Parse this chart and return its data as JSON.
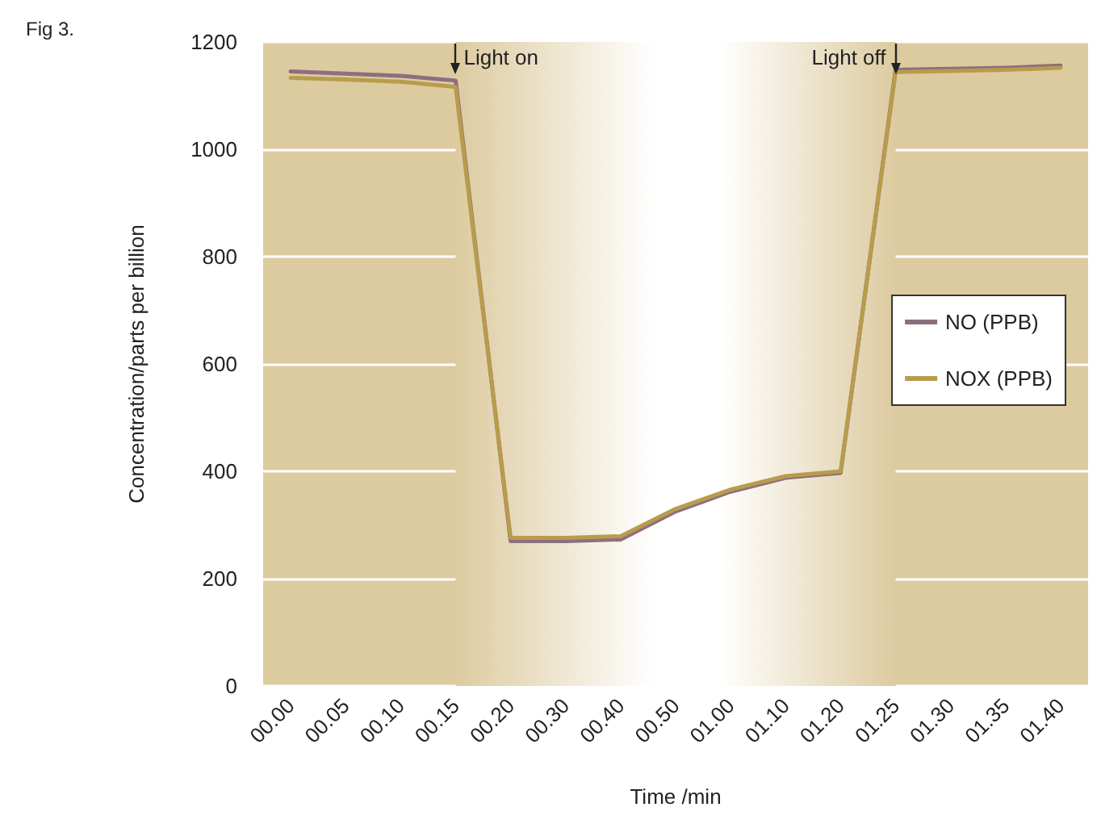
{
  "chart_data": {
    "type": "line",
    "annotations": [
      "Fig 3.",
      {
        "text": "Light on",
        "x": "00.15",
        "y": 1200
      },
      {
        "text": "Light off",
        "x": "01.25",
        "y": 1200
      }
    ],
    "xlabel": "Time /min",
    "ylabel": "Concentration/parts per billion",
    "categories": [
      "00.00",
      "00.05",
      "00.10",
      "00.15",
      "00.20",
      "00.30",
      "00.40",
      "00.50",
      "01.00",
      "01.10",
      "01.20",
      "01.25",
      "01.30",
      "01.35",
      "01.40"
    ],
    "series": [
      {
        "name": "NO (PPB)",
        "color": "#8c6f7f",
        "values": [
          1145,
          1141,
          1137,
          1128,
          270,
          270,
          273,
          325,
          362,
          388,
          397,
          1148,
          1150,
          1152,
          1156
        ]
      },
      {
        "name": "NOX (PPB)",
        "color": "#b89c4c",
        "values": [
          1133,
          1130,
          1126,
          1116,
          276,
          276,
          279,
          330,
          366,
          391,
          400,
          1144,
          1146,
          1148,
          1152
        ]
      }
    ],
    "ylim": [
      0,
      1200
    ],
    "yticks": [
      0,
      200,
      400,
      600,
      800,
      1000,
      1200
    ],
    "bands": [
      {
        "axis": "x",
        "from": "00.15",
        "to": "01.25",
        "color": "#ffffff"
      }
    ],
    "grid": "y",
    "legend": "right",
    "marker": "none",
    "line_style": "solid"
  }
}
